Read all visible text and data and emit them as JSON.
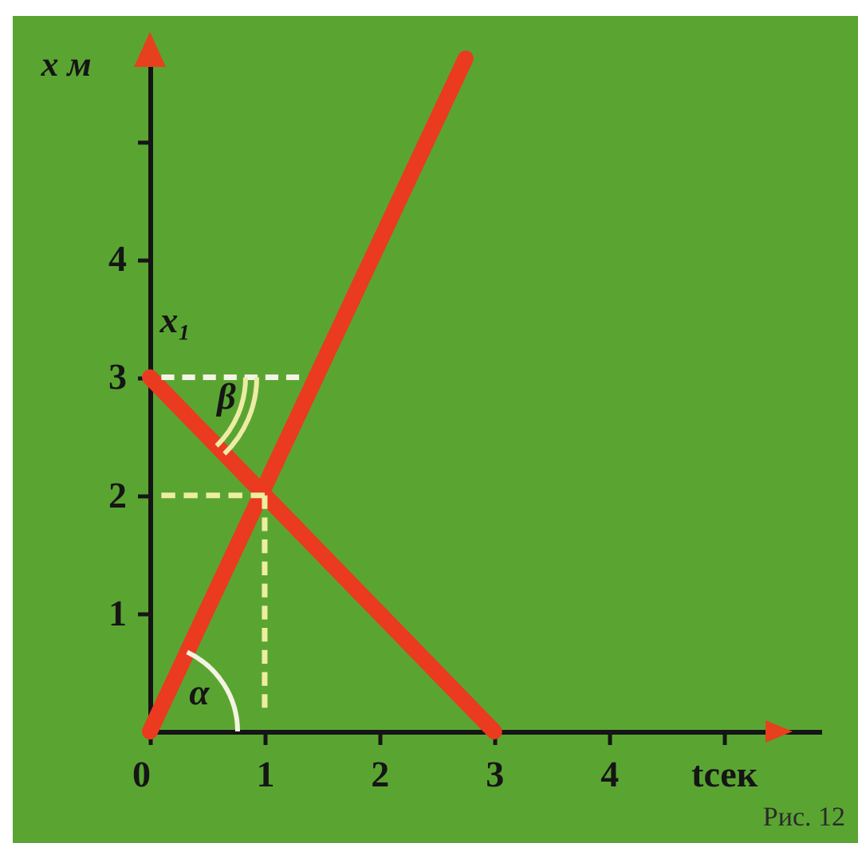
{
  "chart_data": {
    "type": "line",
    "ylabel": "x м",
    "xlim": [
      0,
      5.85
    ],
    "ylim": [
      0,
      5.75
    ],
    "xticks": [
      0,
      1,
      2,
      3,
      4,
      {
        "value": 5,
        "label": "tсек"
      }
    ],
    "yticks": [
      1,
      2,
      3,
      4,
      {
        "value": 5,
        "label": null
      }
    ],
    "line_style": "solid",
    "series": [
      {
        "color": "#ea3a1f",
        "x": [
          0,
          2.75
        ],
        "values": [
          0,
          5.7
        ]
      },
      {
        "color": "#ea3a1f",
        "x": [
          0,
          3
        ],
        "values": [
          3,
          0
        ]
      },
      {
        "color": "#f4f4e6",
        "x": [
          0.1,
          1.3
        ],
        "values": [
          3,
          3
        ],
        "line_style": "dashed"
      },
      {
        "color": "#eeeea0",
        "x": [
          0.1,
          1
        ],
        "values": [
          2,
          2
        ],
        "line_style": "dashed"
      },
      {
        "color": "#eeeea0",
        "x": [
          1,
          1
        ],
        "values": [
          0.2,
          2
        ],
        "line_style": "dashed"
      }
    ],
    "annotations": [
      "x₁",
      "β",
      "α",
      "Рис. 12"
    ]
  }
}
